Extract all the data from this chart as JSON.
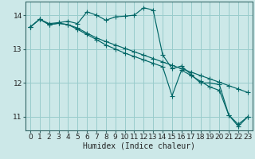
{
  "title": "",
  "xlabel": "Humidex (Indice chaleur)",
  "bg_color": "#cce8e8",
  "grid_color": "#99cccc",
  "line_color": "#006666",
  "series": [
    [
      13.65,
      13.88,
      13.75,
      13.78,
      13.82,
      13.75,
      14.1,
      14.0,
      13.85,
      13.95,
      13.97,
      14.0,
      14.22,
      14.15,
      12.83,
      12.42,
      12.5,
      12.25,
      12.0,
      12.0,
      11.95,
      11.05,
      10.78,
      11.0
    ],
    [
      13.65,
      13.88,
      13.72,
      13.76,
      13.72,
      13.62,
      13.47,
      13.33,
      13.22,
      13.12,
      13.02,
      12.92,
      12.82,
      12.72,
      12.62,
      12.52,
      12.42,
      12.32,
      12.22,
      12.12,
      12.02,
      11.92,
      11.82,
      11.72
    ],
    [
      13.65,
      13.88,
      13.72,
      13.76,
      13.72,
      13.58,
      13.43,
      13.28,
      13.12,
      13.0,
      12.88,
      12.78,
      12.68,
      12.58,
      12.48,
      11.62,
      12.38,
      12.22,
      12.05,
      11.88,
      11.78,
      11.05,
      10.72,
      11.0
    ]
  ],
  "x_values": [
    0,
    1,
    2,
    3,
    4,
    5,
    6,
    7,
    8,
    9,
    10,
    11,
    12,
    13,
    14,
    15,
    16,
    17,
    18,
    19,
    20,
    21,
    22,
    23
  ],
  "ylim": [
    10.6,
    14.4
  ],
  "xlim": [
    -0.5,
    23.5
  ],
  "yticks": [
    11,
    12,
    13,
    14
  ],
  "xticks": [
    0,
    1,
    2,
    3,
    4,
    5,
    6,
    7,
    8,
    9,
    10,
    11,
    12,
    13,
    14,
    15,
    16,
    17,
    18,
    19,
    20,
    21,
    22,
    23
  ],
  "xlabel_fontsize": 7,
  "tick_fontsize": 6.5,
  "marker_size": 2.2,
  "linewidth": 0.85
}
